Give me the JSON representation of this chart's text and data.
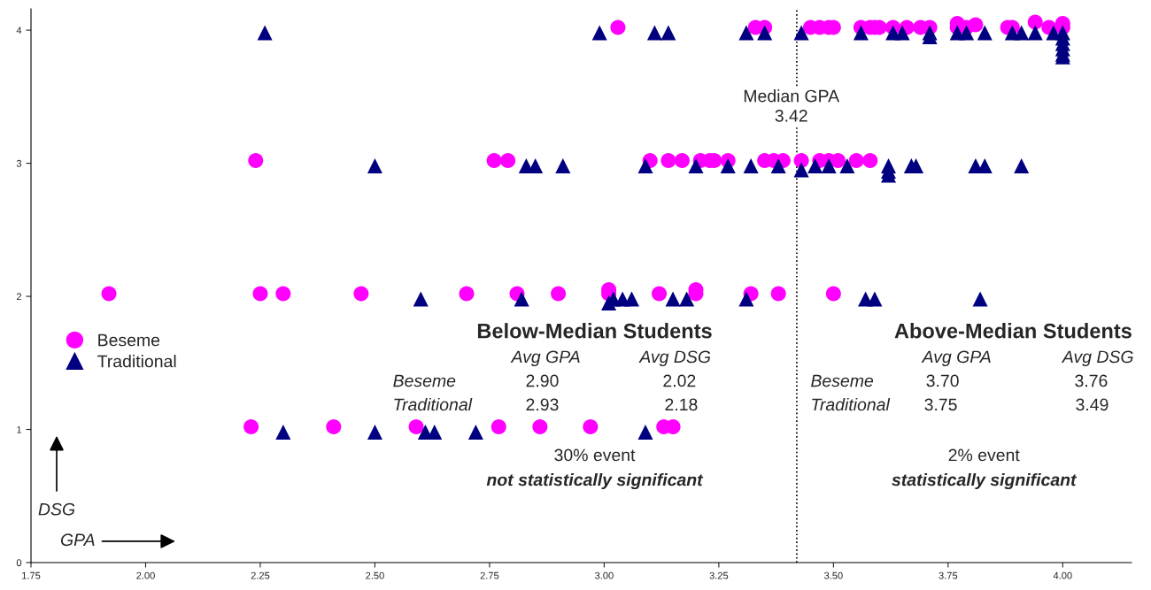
{
  "chart_data": {
    "type": "scatter",
    "xlabel": "GPA",
    "ylabel": "DSG",
    "xlim": [
      1.75,
      4.15
    ],
    "ylim": [
      0,
      4.16
    ],
    "xticks": [
      {
        "value": 1.75,
        "label": "1.75"
      },
      {
        "value": 2.0,
        "label": "2.00"
      },
      {
        "value": 2.25,
        "label": "2.25"
      },
      {
        "value": 2.5,
        "label": "2.50"
      },
      {
        "value": 2.75,
        "label": "2.75"
      },
      {
        "value": 3.0,
        "label": "3.00"
      },
      {
        "value": 3.25,
        "label": "3.25"
      },
      {
        "value": 3.5,
        "label": "3.50"
      },
      {
        "value": 3.75,
        "label": "3.75"
      },
      {
        "value": 4.0,
        "label": "4.00"
      }
    ],
    "yticks": [
      0,
      1,
      2,
      3,
      4
    ],
    "grid": false,
    "legend": "left",
    "series": [
      {
        "name": "Beseme",
        "color": "#ff00ff",
        "marker": "circle",
        "x": [
          3.03,
          3.33,
          3.35,
          3.45,
          3.47,
          3.49,
          3.5,
          3.56,
          3.58,
          3.59,
          3.6,
          3.63,
          3.66,
          3.69,
          3.71,
          3.77,
          3.77,
          3.79,
          3.81,
          3.88,
          3.89,
          3.94,
          3.97,
          4.0,
          4.0,
          2.24,
          2.76,
          2.79,
          3.1,
          3.14,
          3.17,
          3.21,
          3.23,
          3.24,
          3.27,
          3.35,
          3.37,
          3.39,
          3.43,
          3.47,
          3.49,
          3.51,
          3.55,
          3.58,
          1.92,
          2.25,
          2.3,
          2.47,
          2.7,
          2.81,
          2.9,
          3.01,
          3.01,
          3.12,
          3.2,
          3.2,
          3.32,
          3.38,
          3.5,
          2.23,
          2.41,
          2.59,
          2.77,
          2.86,
          2.97,
          3.13,
          3.15
        ],
        "values": [
          4.02,
          4.02,
          4.02,
          4.02,
          4.02,
          4.02,
          4.02,
          4.02,
          4.02,
          4.02,
          4.02,
          4.02,
          4.02,
          4.02,
          4.02,
          4.05,
          4.02,
          4.02,
          4.04,
          4.02,
          4.02,
          4.06,
          4.02,
          4.05,
          4.02,
          3.02,
          3.02,
          3.02,
          3.02,
          3.02,
          3.02,
          3.02,
          3.02,
          3.02,
          3.02,
          3.02,
          3.02,
          3.02,
          3.02,
          3.02,
          3.02,
          3.02,
          3.02,
          3.02,
          2.02,
          2.02,
          2.02,
          2.02,
          2.02,
          2.02,
          2.02,
          2.02,
          2.05,
          2.02,
          2.02,
          2.05,
          2.02,
          2.02,
          2.02,
          1.02,
          1.02,
          1.02,
          1.02,
          1.02,
          1.02,
          1.02,
          1.02
        ]
      },
      {
        "name": "Traditional",
        "color": "#000080",
        "marker": "triangle",
        "x": [
          2.26,
          2.99,
          3.11,
          3.14,
          3.31,
          3.35,
          3.43,
          3.56,
          3.63,
          3.65,
          3.71,
          3.71,
          3.77,
          3.79,
          3.83,
          3.89,
          3.91,
          3.94,
          3.98,
          4.0,
          4.0,
          4.0,
          4.0,
          4.0,
          4.0,
          2.5,
          2.83,
          2.85,
          2.91,
          3.09,
          3.2,
          3.27,
          3.32,
          3.38,
          3.43,
          3.46,
          3.49,
          3.53,
          3.62,
          3.62,
          3.62,
          3.67,
          3.68,
          3.81,
          3.83,
          3.91,
          2.6,
          2.82,
          3.01,
          3.02,
          3.04,
          3.06,
          3.15,
          3.18,
          3.31,
          3.57,
          3.59,
          3.82,
          2.3,
          2.5,
          2.61,
          2.63,
          2.72,
          3.09
        ],
        "values": [
          3.98,
          3.98,
          3.98,
          3.98,
          3.98,
          3.98,
          3.98,
          3.98,
          3.98,
          3.98,
          3.98,
          3.95,
          3.98,
          3.98,
          3.98,
          3.98,
          3.98,
          3.98,
          3.98,
          3.98,
          3.94,
          3.9,
          3.86,
          3.82,
          3.8,
          2.98,
          2.98,
          2.98,
          2.98,
          2.98,
          2.98,
          2.98,
          2.98,
          2.98,
          2.95,
          2.98,
          2.98,
          2.98,
          2.98,
          2.94,
          2.91,
          2.98,
          2.98,
          2.98,
          2.98,
          2.98,
          1.98,
          1.98,
          1.95,
          1.98,
          1.98,
          1.98,
          1.98,
          1.98,
          1.98,
          1.98,
          1.98,
          1.98,
          0.98,
          0.98,
          0.98,
          0.98,
          0.98,
          0.98
        ]
      }
    ],
    "ref_lines": [
      {
        "axis": "x",
        "value": 3.42,
        "label": "Median GPA\n3.42",
        "line_style": "dotted",
        "color": "#000000"
      }
    ],
    "annotations": [
      "Below-Median Students",
      "Avg GPA",
      "Avg DSG",
      "Beseme",
      "2.90",
      "2.02",
      "Traditional",
      "2.93",
      "2.18",
      "30% event",
      "not statistically significant",
      "Above-Median Students",
      "Avg GPA",
      "Avg DSG",
      "Beseme",
      "3.70",
      "3.76",
      "Traditional",
      "3.75",
      "3.49",
      "2% event",
      "statistically significant"
    ]
  }
}
